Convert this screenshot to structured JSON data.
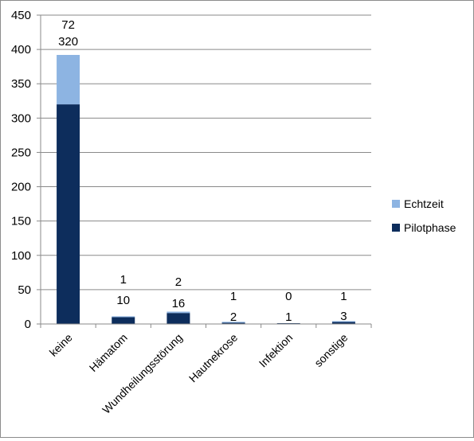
{
  "chart_data": {
    "type": "bar",
    "stacked": true,
    "categories": [
      "keine",
      "Hämatom",
      "Wundheilungsstörung",
      "Hautnekrose",
      "Infektion",
      "sonstige"
    ],
    "series": [
      {
        "name": "Pilotphase",
        "values": [
          320,
          10,
          16,
          2,
          1,
          3
        ],
        "color": "#0d2d5c"
      },
      {
        "name": "Echtzeit",
        "values": [
          72,
          1,
          2,
          1,
          0,
          1
        ],
        "color": "#8db4e2"
      }
    ],
    "ylim": [
      0,
      450
    ],
    "yticks": [
      0,
      50,
      100,
      150,
      200,
      250,
      300,
      350,
      400,
      450
    ],
    "grid": true,
    "legend": "right"
  }
}
